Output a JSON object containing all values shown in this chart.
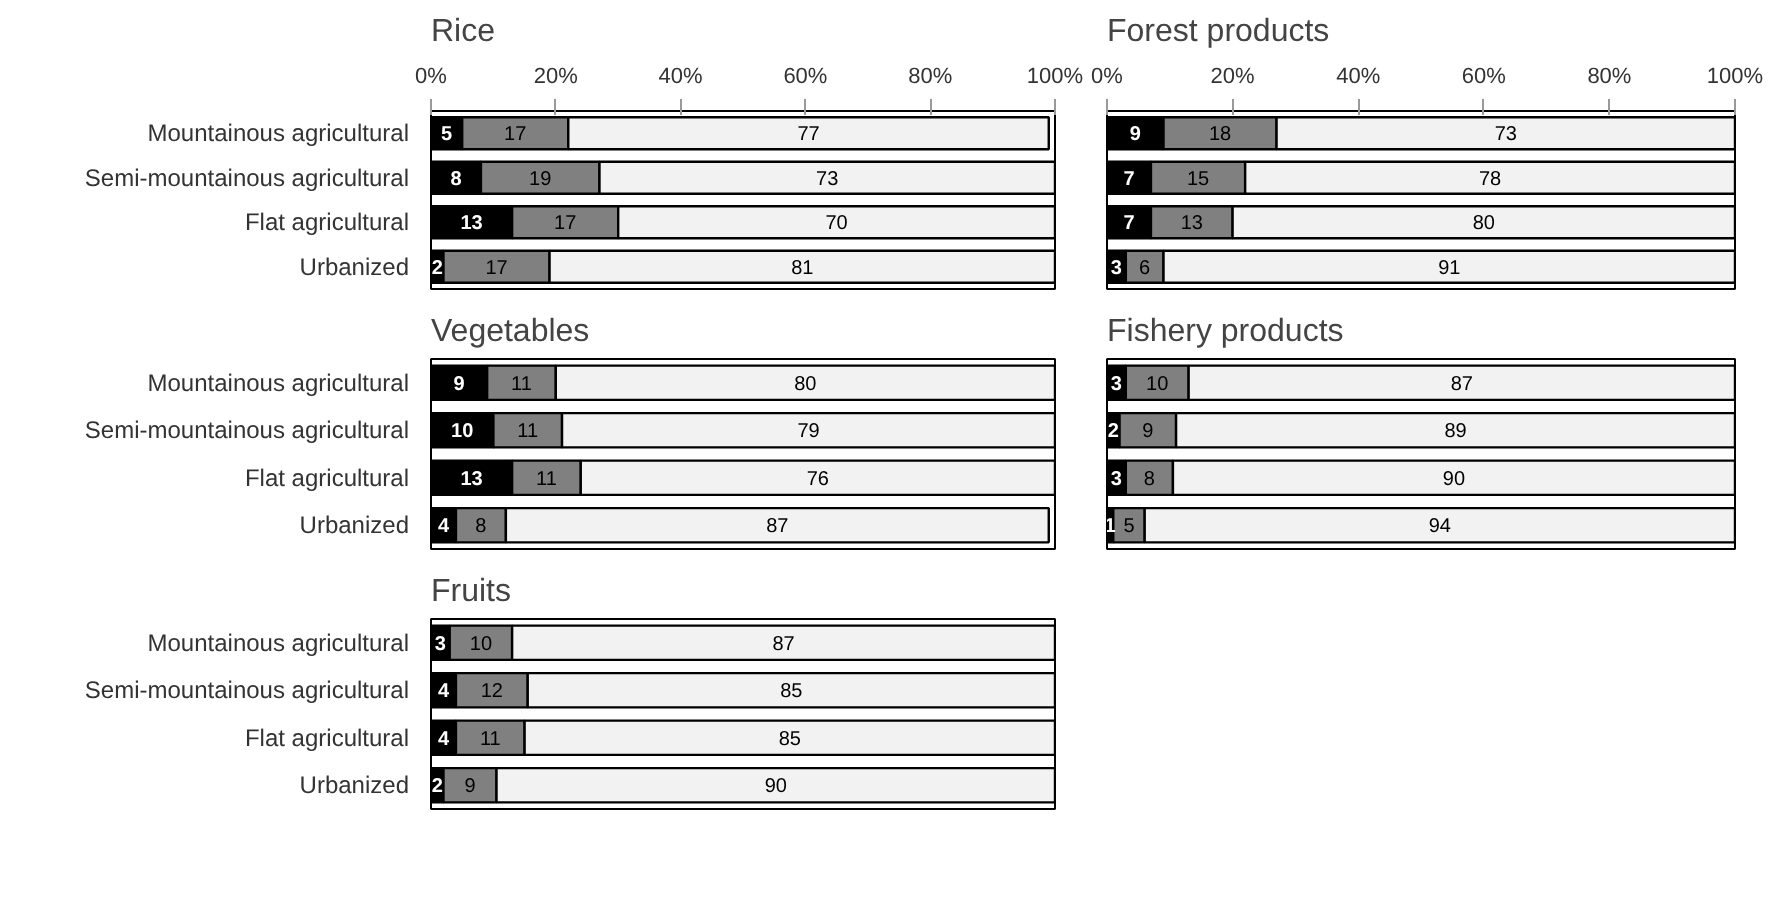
{
  "chart_data": [
    {
      "type": "bar",
      "orientation": "horizontal",
      "stacked": true,
      "title": "Rice",
      "categories": [
        "Mountainous agricultural",
        "Semi-mountainous agricultural",
        "Flat agricultural",
        "Urbanized"
      ],
      "series": [
        {
          "color": "#000000",
          "values": [
            5,
            8,
            13,
            2
          ]
        },
        {
          "color": "#808080",
          "values": [
            17,
            19,
            17,
            17
          ]
        },
        {
          "color": "#f2f2f2",
          "values": [
            77,
            73,
            70,
            81
          ]
        }
      ],
      "xlim": [
        0,
        100
      ],
      "xticks": [
        {
          "value": 0,
          "label": "0%"
        },
        {
          "value": 20,
          "label": "20%"
        },
        {
          "value": 40,
          "label": "40%"
        },
        {
          "value": 60,
          "label": "60%"
        },
        {
          "value": 80,
          "label": "80%"
        },
        {
          "value": 100,
          "label": "100%"
        }
      ],
      "data_labels": true,
      "grid": false
    },
    {
      "type": "bar",
      "orientation": "horizontal",
      "stacked": true,
      "title": "Vegetables",
      "categories": [
        "Mountainous agricultural",
        "Semi-mountainous agricultural",
        "Flat agricultural",
        "Urbanized"
      ],
      "series": [
        {
          "color": "#000000",
          "values": [
            9,
            10,
            13,
            4
          ]
        },
        {
          "color": "#808080",
          "values": [
            11,
            11,
            11,
            8
          ]
        },
        {
          "color": "#f2f2f2",
          "values": [
            80,
            79,
            76,
            87
          ]
        }
      ],
      "xlim": [
        0,
        100
      ],
      "data_labels": true,
      "grid": false,
      "tick_labels": "y"
    },
    {
      "type": "bar",
      "orientation": "horizontal",
      "stacked": true,
      "title": "Fruits",
      "categories": [
        "Mountainous agricultural",
        "Semi-mountainous agricultural",
        "Flat agricultural",
        "Urbanized"
      ],
      "series": [
        {
          "color": "#000000",
          "values": [
            3,
            4,
            4,
            2
          ],
          "value_labels": [
            "3",
            "4",
            "4",
            "2"
          ]
        },
        {
          "color": "#808080",
          "values": [
            10,
            11.5,
            11,
            8.5
          ],
          "value_labels": [
            "10",
            "12",
            "11",
            "9"
          ]
        },
        {
          "color": "#f2f2f2",
          "values": [
            87,
            84.5,
            85,
            89.5
          ],
          "value_labels": [
            "87",
            "85",
            "85",
            "90"
          ]
        }
      ],
      "xlim": [
        0,
        100
      ],
      "grid": false,
      "tick_labels": "y"
    },
    {
      "type": "bar",
      "orientation": "horizontal",
      "stacked": true,
      "title": "Forest products",
      "categories": [
        null,
        null,
        null,
        null
      ],
      "series": [
        {
          "color": "#000000",
          "values": [
            9,
            7,
            7,
            3
          ]
        },
        {
          "color": "#808080",
          "values": [
            18,
            15,
            13,
            6
          ]
        },
        {
          "color": "#f2f2f2",
          "values": [
            73,
            78,
            80,
            91
          ]
        }
      ],
      "xlim": [
        0,
        100
      ],
      "xticks": [
        {
          "value": 0,
          "label": "0%"
        },
        {
          "value": 20,
          "label": "20%"
        },
        {
          "value": 40,
          "label": "40%"
        },
        {
          "value": 60,
          "label": "60%"
        },
        {
          "value": 80,
          "label": "80%"
        },
        {
          "value": 100,
          "label": "100%"
        }
      ],
      "data_labels": true,
      "grid": false,
      "tick_labels": "x"
    },
    {
      "type": "bar",
      "orientation": "horizontal",
      "stacked": true,
      "title": "Fishery products",
      "categories": [
        null,
        null,
        null,
        null
      ],
      "series": [
        {
          "color": "#000000",
          "values": [
            3,
            2,
            3,
            1
          ],
          "value_labels": [
            "3",
            "2",
            "3",
            "1"
          ]
        },
        {
          "color": "#808080",
          "values": [
            10,
            9,
            7.5,
            5
          ],
          "value_labels": [
            "10",
            "9",
            "8",
            "5"
          ]
        },
        {
          "color": "#f2f2f2",
          "values": [
            87,
            89,
            89.5,
            94
          ],
          "value_labels": [
            "87",
            "89",
            "90",
            "94"
          ]
        }
      ],
      "xlim": [
        0,
        100
      ],
      "grid": false,
      "tick_labels": false
    }
  ]
}
